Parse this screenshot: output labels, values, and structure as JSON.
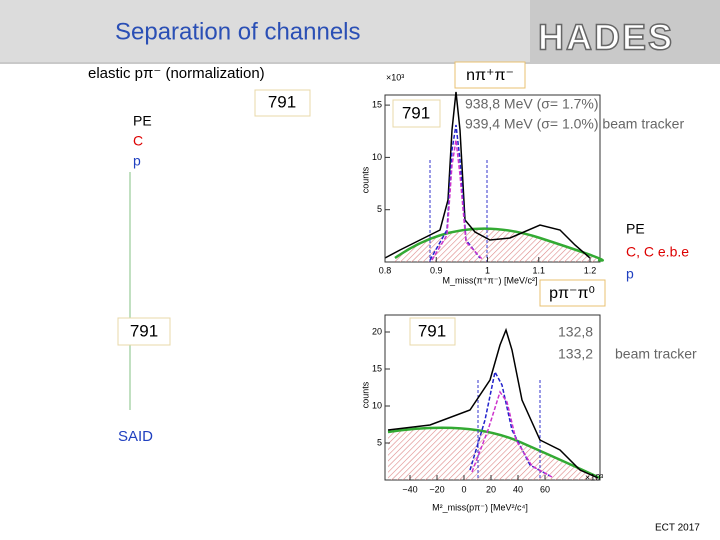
{
  "header": {
    "title": "Separation of channels",
    "logo": "HADES"
  },
  "left": {
    "heading": "elastic pπ⁻ (normalization)",
    "box_top": "791",
    "legend": [
      "PE",
      "C",
      "p"
    ],
    "box_bottom": "791",
    "said": "SAID"
  },
  "plots": [
    {
      "channel": "nπ⁺π⁻",
      "box": "791",
      "exponent": "×10³",
      "y_label": "counts",
      "x_label": "M_miss(π⁺π⁻) [MeV/c²]",
      "yticks": [
        "5",
        "10",
        "15"
      ],
      "xticks": [
        "0.8",
        "0.9",
        "1",
        "1.1",
        "1.2"
      ],
      "results": [
        "938,8 MeV (σ= 1.7%)",
        "939,4 MeV (σ= 1.0%) beam tracker"
      ]
    },
    {
      "channel": "pπ⁻π⁰",
      "box": "791",
      "exponent": "×10³",
      "y_label": "counts",
      "x_label": "M²_miss(pπ⁻) [MeV²/c⁴]",
      "yticks": [
        "5",
        "10",
        "15",
        "20"
      ],
      "xticks": [
        "−40",
        "−20",
        "0",
        "20",
        "40",
        "60"
      ],
      "results": [
        "132,8",
        "133,2",
        "beam tracker"
      ]
    }
  ],
  "right_legend": [
    "PE",
    "C, C e.b.e",
    "p"
  ],
  "footer": "ECT 2017"
}
